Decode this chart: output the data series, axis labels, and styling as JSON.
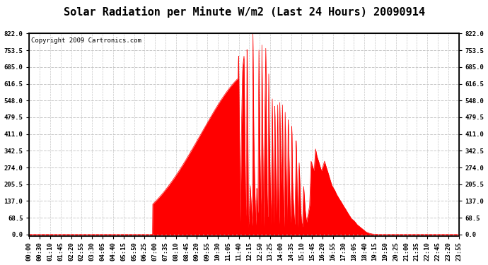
{
  "title": "Solar Radiation per Minute W/m2 (Last 24 Hours) 20090914",
  "copyright": "Copyright 2009 Cartronics.com",
  "bg_color": "#ffffff",
  "plot_bg_color": "#ffffff",
  "fill_color": "#ff0000",
  "line_color": "#ff0000",
  "grid_color": "#c8c8c8",
  "dashed_line_color": "#ff0000",
  "yticks": [
    0.0,
    68.5,
    137.0,
    205.5,
    274.0,
    342.5,
    411.0,
    479.5,
    548.0,
    616.5,
    685.0,
    753.5,
    822.0
  ],
  "ymax": 822.0,
  "ymin": 0.0,
  "xtick_labels": [
    "00:00",
    "00:30",
    "01:10",
    "01:45",
    "02:20",
    "02:55",
    "03:30",
    "04:05",
    "04:40",
    "05:15",
    "05:50",
    "06:25",
    "07:00",
    "07:35",
    "08:10",
    "08:45",
    "09:20",
    "09:55",
    "10:30",
    "11:05",
    "11:40",
    "12:15",
    "12:50",
    "13:25",
    "14:00",
    "14:35",
    "15:10",
    "15:45",
    "16:20",
    "16:55",
    "17:30",
    "18:05",
    "18:40",
    "19:15",
    "19:50",
    "20:25",
    "21:00",
    "21:35",
    "22:10",
    "22:45",
    "23:20",
    "23:55"
  ],
  "title_fontsize": 11,
  "copyright_fontsize": 6.5,
  "tick_fontsize": 6.5
}
